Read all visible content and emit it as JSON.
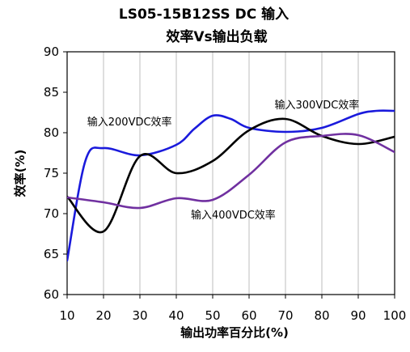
{
  "chart_data": {
    "type": "line",
    "title_line1": "LS05-15B12SS DC 输入",
    "title_line2": "效率Vs输出负载",
    "xlabel": "输出功率百分比(%)",
    "ylabel": "效率(%)",
    "xlim": [
      10,
      100
    ],
    "ylim": [
      60,
      90
    ],
    "xticks": [
      10,
      20,
      30,
      40,
      50,
      60,
      70,
      80,
      90,
      100
    ],
    "yticks": [
      60,
      65,
      70,
      75,
      80,
      85,
      90
    ],
    "xtick_labels": [
      "10",
      "20",
      "30",
      "40",
      "50",
      "60",
      "70",
      "80",
      "90",
      "100"
    ],
    "ytick_labels": [
      "60",
      "65",
      "70",
      "75",
      "80",
      "85",
      "90"
    ],
    "grid": {
      "x": true,
      "y": false
    },
    "legend": "none",
    "series": [
      {
        "name": "输入200VDC效率",
        "color": "#1a1adc",
        "x": [
          10,
          15,
          20,
          30,
          40,
          45,
          50,
          55,
          60,
          70,
          80,
          90,
          95,
          100
        ],
        "y": [
          64.2,
          76.5,
          78.1,
          77.2,
          78.5,
          80.5,
          82.1,
          81.7,
          80.6,
          80.1,
          80.6,
          82.3,
          82.7,
          82.7
        ]
      },
      {
        "name": "输入300VDC效率",
        "color": "#000000",
        "x": [
          10,
          20,
          30,
          40,
          50,
          60,
          70,
          80,
          90,
          100
        ],
        "y": [
          72.1,
          67.8,
          77.1,
          75.0,
          76.5,
          80.3,
          81.7,
          79.6,
          78.6,
          79.5
        ]
      },
      {
        "name": "输入400VDC效率",
        "color": "#7030a0",
        "x": [
          10,
          20,
          30,
          40,
          50,
          60,
          70,
          80,
          90,
          100
        ],
        "y": [
          72.0,
          71.4,
          70.7,
          71.9,
          71.7,
          74.8,
          78.8,
          79.6,
          79.7,
          77.6
        ]
      }
    ],
    "annotations": [
      {
        "series": 0,
        "text": "输入200VDC效率",
        "anchor_x": 15.5,
        "anchor_y": 80.9
      },
      {
        "series": 1,
        "text": "输入300VDC效率",
        "anchor_x": 67,
        "anchor_y": 83.0
      },
      {
        "series": 2,
        "text": "输入400VDC效率",
        "anchor_x": 44,
        "anchor_y": 69.4
      }
    ]
  }
}
